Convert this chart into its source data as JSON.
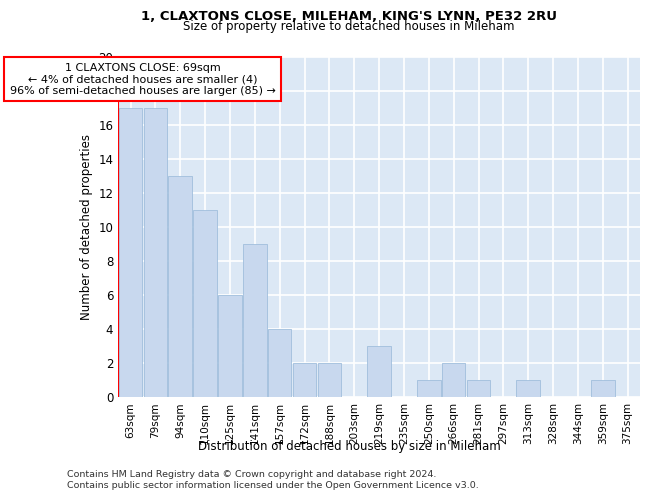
{
  "title1": "1, CLAXTONS CLOSE, MILEHAM, KING'S LYNN, PE32 2RU",
  "title2": "Size of property relative to detached houses in Mileham",
  "xlabel": "Distribution of detached houses by size in Mileham",
  "ylabel": "Number of detached properties",
  "categories": [
    "63sqm",
    "79sqm",
    "94sqm",
    "110sqm",
    "125sqm",
    "141sqm",
    "157sqm",
    "172sqm",
    "188sqm",
    "203sqm",
    "219sqm",
    "235sqm",
    "250sqm",
    "266sqm",
    "281sqm",
    "297sqm",
    "313sqm",
    "328sqm",
    "344sqm",
    "359sqm",
    "375sqm"
  ],
  "values": [
    17,
    17,
    13,
    11,
    6,
    9,
    4,
    2,
    2,
    0,
    3,
    0,
    1,
    2,
    1,
    0,
    1,
    0,
    0,
    1,
    0
  ],
  "bar_color": "#c8d8ee",
  "bar_edge_color": "#a0bedc",
  "annotation_text": "1 CLAXTONS CLOSE: 69sqm\n← 4% of detached houses are smaller (4)\n96% of semi-detached houses are larger (85) →",
  "ylim": [
    0,
    20
  ],
  "yticks": [
    0,
    2,
    4,
    6,
    8,
    10,
    12,
    14,
    16,
    18,
    20
  ],
  "footnote1": "Contains HM Land Registry data © Crown copyright and database right 2024.",
  "footnote2": "Contains public sector information licensed under the Open Government Licence v3.0.",
  "fig_bg": "#ffffff",
  "axes_bg": "#dce8f5",
  "grid_color": "#ffffff"
}
